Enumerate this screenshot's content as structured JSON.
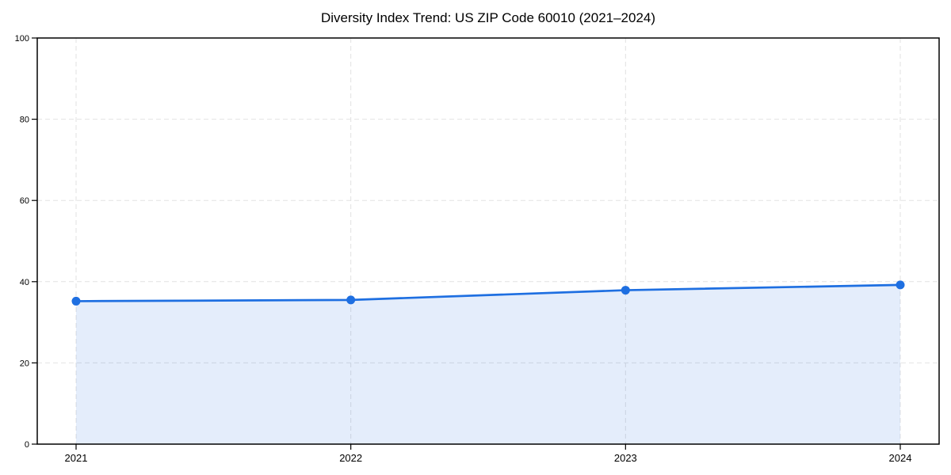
{
  "chart_data": {
    "type": "area",
    "title": "Diversity Index Trend: US ZIP Code 60010 (2021–2024)",
    "categories": [
      "2021",
      "2022",
      "2023",
      "2024"
    ],
    "values": [
      35.2,
      35.5,
      37.9,
      39.2
    ],
    "xlabel": "",
    "ylabel": "",
    "ylim": [
      0,
      100
    ],
    "yticks": [
      0,
      20,
      40,
      60,
      80,
      100
    ],
    "grid": true,
    "grid_style": "dashed",
    "legend": "none",
    "colors": {
      "line": "#1e6fe1",
      "marker": "#1e6fe1",
      "fill": "rgba(30,111,225,0.12)",
      "grid": "#e2e2e2",
      "axis": "#000000",
      "tick_text": "#000000"
    }
  }
}
